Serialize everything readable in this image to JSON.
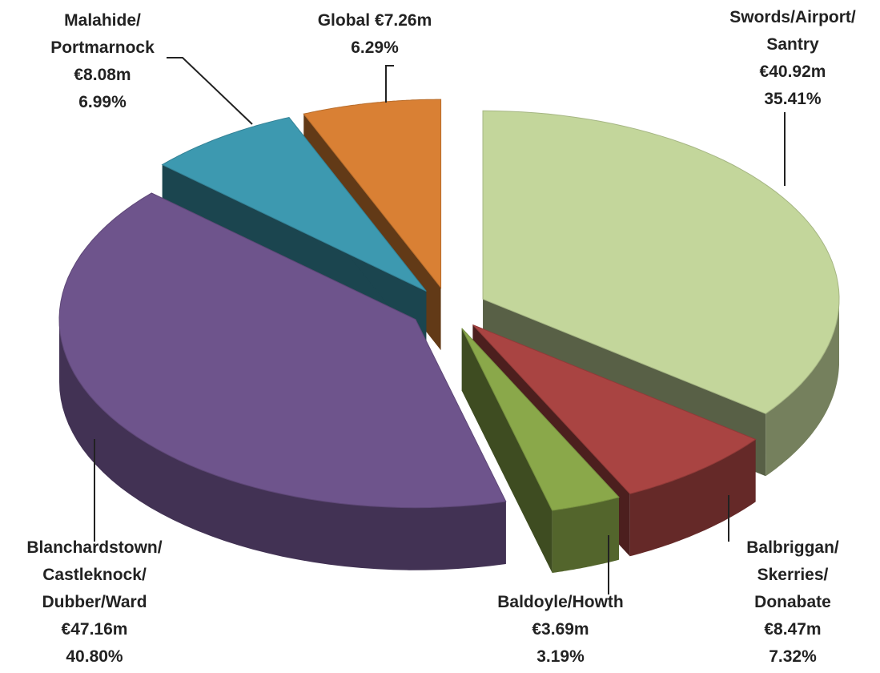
{
  "chart_data": {
    "type": "pie",
    "categories": [
      "Swords/Airport/\nSantry",
      "Balbriggan/\nSkerries/\nDonabate",
      "Baldoyle/Howth",
      "Blanchardstown/\nCastleknock/\nDubber/Ward",
      "Malahide/\nPortmarnock",
      "Global"
    ],
    "amount_labels": [
      "€40.92m",
      "€8.47m",
      "€3.69m",
      "€47.16m",
      "€8.08m",
      "€7.26m"
    ],
    "values": [
      35.41,
      7.32,
      3.19,
      40.8,
      6.99,
      6.29
    ],
    "value_labels": [
      "35.41%",
      "7.32%",
      "3.19%",
      "40.80%",
      "6.99%",
      "6.29%"
    ],
    "colors": [
      "#c3d69b",
      "#a94442",
      "#8aa84a",
      "#6e548c",
      "#3d99b0",
      "#d98034"
    ]
  }
}
